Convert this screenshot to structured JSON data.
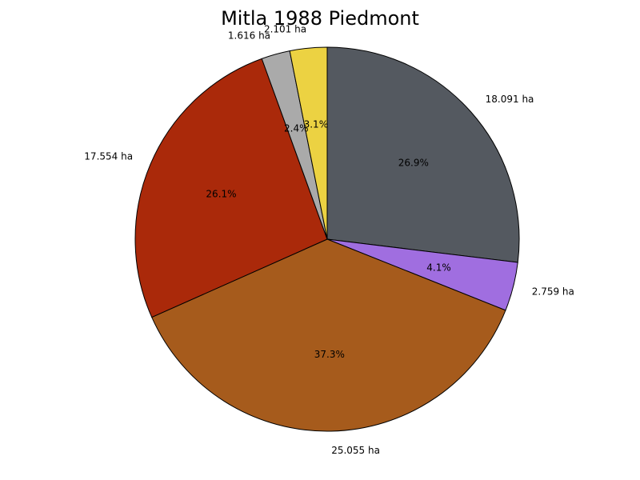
{
  "chart_data": {
    "type": "pie",
    "title": "Mitla 1988 Piedmont",
    "unit": "ha",
    "start_angle_deg": 90,
    "direction": "clockwise",
    "slices": [
      {
        "label": "18.091 ha",
        "value": 18.091,
        "pct_label": "26.9%",
        "color": "#545960"
      },
      {
        "label": "2.759 ha",
        "value": 2.759,
        "pct_label": "4.1%",
        "color": "#a06ee0"
      },
      {
        "label": "25.055 ha",
        "value": 25.055,
        "pct_label": "37.3%",
        "color": "#a65b1c"
      },
      {
        "label": "17.554 ha",
        "value": 17.554,
        "pct_label": "26.1%",
        "color": "#aa290a"
      },
      {
        "label": "1.616 ha",
        "value": 1.616,
        "pct_label": "2.4%",
        "color": "#aaaaaa"
      },
      {
        "label": "2.101 ha",
        "value": 2.101,
        "pct_label": "3.1%",
        "color": "#ecd242"
      }
    ]
  }
}
